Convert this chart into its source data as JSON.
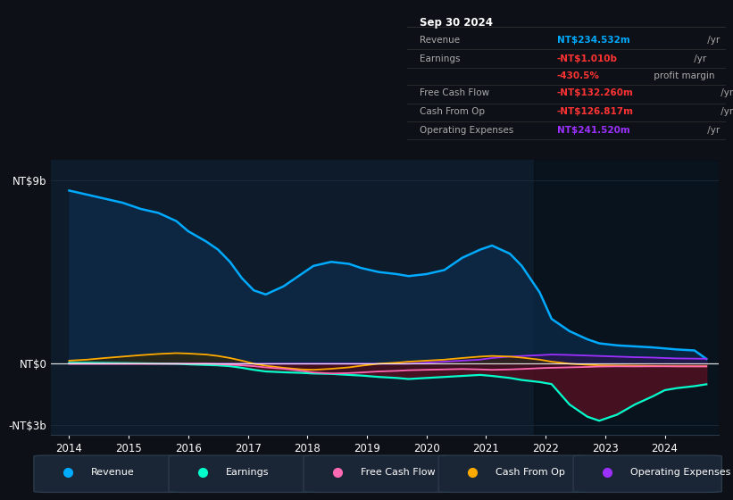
{
  "bg_color": "#0d1117",
  "chart_bg": "#0d1b2a",
  "colors": {
    "revenue": "#00aaff",
    "earnings": "#00ffcc",
    "free_cash_flow": "#ff69b4",
    "cash_from_op": "#ffaa00",
    "operating_expenses": "#9b30ff"
  },
  "legend_items": [
    {
      "label": "Revenue",
      "color": "#00aaff"
    },
    {
      "label": "Earnings",
      "color": "#00ffcc"
    },
    {
      "label": "Free Cash Flow",
      "color": "#ff69b4"
    },
    {
      "label": "Cash From Op",
      "color": "#ffaa00"
    },
    {
      "label": "Operating Expenses",
      "color": "#9b30ff"
    }
  ],
  "info_box": {
    "date": "Sep 30 2024",
    "rows": [
      {
        "label": "Revenue",
        "value": "NT$234.532m",
        "suffix": " /yr",
        "val_color": "#00aaff",
        "suf_color": "#aaaaaa"
      },
      {
        "label": "Earnings",
        "value": "-NT$1.010b",
        "suffix": " /yr",
        "val_color": "#ff3333",
        "suf_color": "#aaaaaa"
      },
      {
        "label": "",
        "value": "-430.5%",
        "suffix": " profit margin",
        "val_color": "#ff3333",
        "suf_color": "#aaaaaa"
      },
      {
        "label": "Free Cash Flow",
        "value": "-NT$132.260m",
        "suffix": " /yr",
        "val_color": "#ff3333",
        "suf_color": "#aaaaaa"
      },
      {
        "label": "Cash From Op",
        "value": "-NT$126.817m",
        "suffix": " /yr",
        "val_color": "#ff3333",
        "suf_color": "#aaaaaa"
      },
      {
        "label": "Operating Expenses",
        "value": "NT$241.520m",
        "suffix": " /yr",
        "val_color": "#9b30ff",
        "suf_color": "#aaaaaa"
      }
    ]
  },
  "ylim": [
    -3500,
    10000
  ],
  "xlim": [
    2013.7,
    2024.9
  ],
  "ytick_vals": [
    9000,
    0,
    -3000
  ],
  "ytick_labels": [
    "NT$9b",
    "NT$0",
    "-NT$3b"
  ],
  "xtick_vals": [
    2014,
    2015,
    2016,
    2017,
    2018,
    2019,
    2020,
    2021,
    2022,
    2023,
    2024
  ],
  "xtick_labels": [
    "2014",
    "2015",
    "2016",
    "2017",
    "2018",
    "2019",
    "2020",
    "2021",
    "2022",
    "2023",
    "2024"
  ],
  "years": [
    2014.0,
    2014.3,
    2014.6,
    2014.9,
    2015.2,
    2015.5,
    2015.8,
    2016.0,
    2016.3,
    2016.5,
    2016.7,
    2016.9,
    2017.1,
    2017.3,
    2017.6,
    2017.9,
    2018.1,
    2018.4,
    2018.7,
    2018.9,
    2019.2,
    2019.5,
    2019.7,
    2020.0,
    2020.3,
    2020.6,
    2020.9,
    2021.1,
    2021.4,
    2021.6,
    2021.9,
    2022.1,
    2022.4,
    2022.7,
    2022.9,
    2023.2,
    2023.5,
    2023.8,
    2024.0,
    2024.2,
    2024.5,
    2024.7
  ],
  "revenue": [
    8500,
    8300,
    8100,
    7900,
    7600,
    7400,
    7000,
    6500,
    6000,
    5600,
    5000,
    4200,
    3600,
    3400,
    3800,
    4400,
    4800,
    5000,
    4900,
    4700,
    4500,
    4400,
    4300,
    4400,
    4600,
    5200,
    5600,
    5800,
    5400,
    4800,
    3500,
    2200,
    1600,
    1200,
    1000,
    900,
    850,
    800,
    750,
    700,
    650,
    234
  ],
  "earnings": [
    50,
    50,
    40,
    30,
    20,
    10,
    0,
    -30,
    -60,
    -80,
    -120,
    -200,
    -300,
    -380,
    -420,
    -450,
    -480,
    -500,
    -550,
    -580,
    -650,
    -700,
    -750,
    -700,
    -650,
    -600,
    -550,
    -600,
    -700,
    -800,
    -900,
    -1000,
    -2000,
    -2600,
    -2800,
    -2500,
    -2000,
    -1600,
    -1300,
    -1200,
    -1100,
    -1010
  ],
  "free_cash_flow": [
    0,
    0,
    0,
    0,
    0,
    0,
    0,
    0,
    0,
    -20,
    -50,
    -80,
    -120,
    -180,
    -250,
    -350,
    -430,
    -480,
    -460,
    -430,
    -380,
    -350,
    -320,
    -300,
    -280,
    -260,
    -280,
    -300,
    -280,
    -260,
    -220,
    -200,
    -180,
    -160,
    -140,
    -130,
    -135,
    -130,
    -130,
    -132,
    -132,
    -132
  ],
  "cash_from_op": [
    150,
    200,
    280,
    350,
    420,
    480,
    520,
    500,
    450,
    380,
    280,
    150,
    0,
    -100,
    -200,
    -280,
    -300,
    -250,
    -180,
    -100,
    0,
    50,
    100,
    150,
    200,
    280,
    350,
    380,
    350,
    300,
    200,
    100,
    0,
    -50,
    -80,
    -90,
    -100,
    -110,
    -120,
    -125,
    -127,
    -127
  ],
  "operating_expenses": [
    0,
    0,
    0,
    0,
    0,
    0,
    0,
    0,
    0,
    0,
    0,
    0,
    0,
    0,
    0,
    0,
    0,
    0,
    0,
    0,
    0,
    0,
    0,
    50,
    100,
    150,
    200,
    280,
    350,
    380,
    420,
    450,
    430,
    400,
    380,
    350,
    320,
    300,
    280,
    260,
    250,
    242
  ]
}
